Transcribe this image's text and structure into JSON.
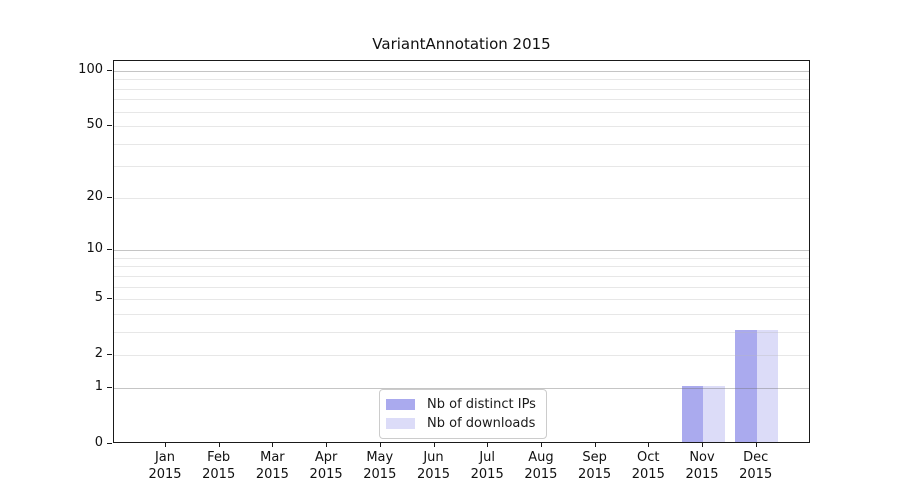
{
  "page": {
    "background": "#ffffff"
  },
  "chart_data": {
    "type": "bar",
    "title": "VariantAnnotation 2015",
    "year": "2015",
    "categories": [
      "Jan",
      "Feb",
      "Mar",
      "Apr",
      "May",
      "Jun",
      "Jul",
      "Aug",
      "Sep",
      "Oct",
      "Nov",
      "Dec"
    ],
    "series": [
      {
        "name": "Nb of distinct IPs",
        "color": "#aaaaee",
        "values": [
          0,
          0,
          0,
          0,
          0,
          0,
          0,
          0,
          0,
          0,
          1,
          3
        ]
      },
      {
        "name": "Nb of downloads",
        "color": "#dcdcf8",
        "values": [
          0,
          0,
          0,
          0,
          0,
          0,
          0,
          0,
          0,
          0,
          1,
          3
        ]
      }
    ],
    "xlabel": "",
    "ylabel": "",
    "y_scale": "log10(1+x)",
    "ylim": [
      0,
      100
    ],
    "y_ticks": [
      0,
      1,
      2,
      5,
      10,
      20,
      50,
      100
    ],
    "gridlines": {
      "major": [
        1,
        10,
        100
      ],
      "minor": [
        2,
        3,
        4,
        5,
        6,
        7,
        8,
        9,
        20,
        30,
        40,
        50,
        60,
        70,
        80,
        90
      ]
    },
    "grid": true,
    "legend_position": "bottom-center-inside",
    "axis_color": "#1a1a1a",
    "grid_major_color": "#c5c5c5",
    "grid_minor_color": "#e8e8e8"
  }
}
